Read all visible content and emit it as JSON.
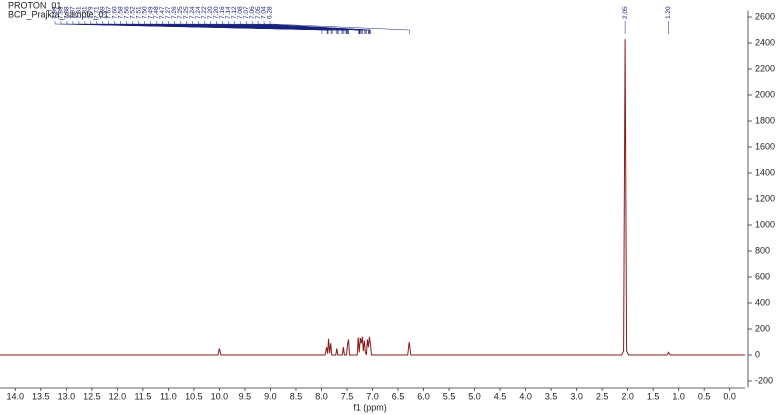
{
  "chart_data": {
    "type": "line",
    "title": "PROTON_01",
    "subtitle": "BCP_Prajkta_sample_01",
    "x_label": "f1 (ppm)",
    "peak_labels": [
      "7.99",
      "7.89",
      "7.88",
      "7.87",
      "7.81",
      "7.81",
      "7.79",
      "7.71",
      "7.69",
      "7.67",
      "7.60",
      "7.58",
      "7.56",
      "7.52",
      "7.51",
      "7.50",
      "7.49",
      "7.48",
      "7.47",
      "7.27",
      "7.26",
      "7.25",
      "7.25",
      "7.24",
      "7.24",
      "7.22",
      "7.20",
      "7.20",
      "7.16",
      "7.14",
      "7.12",
      "7.08",
      "7.07",
      "7.06",
      "7.05",
      "7.04",
      "6.28"
    ],
    "isolated_peak_labels": [
      "2.05",
      "1.20"
    ],
    "x": [
      14.3,
      10.03,
      10.0,
      9.97,
      7.93,
      7.9,
      7.88,
      7.86,
      7.84,
      7.82,
      7.8,
      7.72,
      7.7,
      7.68,
      7.59,
      7.57,
      7.55,
      7.51,
      7.49,
      7.47,
      7.45,
      7.3,
      7.28,
      7.26,
      7.24,
      7.22,
      7.2,
      7.18,
      7.16,
      7.14,
      7.12,
      7.1,
      7.08,
      7.06,
      7.04,
      7.02,
      6.31,
      6.28,
      6.25,
      2.12,
      2.08,
      2.05,
      2.02,
      1.98,
      1.23,
      1.2,
      1.17,
      -0.3
    ],
    "series": [
      {
        "name": "spectrum",
        "color": "#8b1a1a",
        "values": [
          0,
          0,
          50,
          0,
          0,
          60,
          10,
          125,
          15,
          90,
          0,
          0,
          50,
          0,
          0,
          60,
          0,
          0,
          80,
          120,
          0,
          0,
          135,
          20,
          130,
          90,
          140,
          30,
          110,
          20,
          0,
          120,
          60,
          140,
          80,
          0,
          0,
          100,
          0,
          0,
          30,
          2430,
          30,
          0,
          0,
          20,
          0,
          0
        ]
      }
    ],
    "xlim": [
      14.3,
      -0.3
    ],
    "xticks": [
      {
        "value": 14,
        "label": "14.0"
      },
      13.5,
      {
        "value": 13,
        "label": "13.0"
      },
      12.5,
      {
        "value": 12,
        "label": "12.0"
      },
      11.5,
      {
        "value": 11,
        "label": "11.0"
      },
      10.5,
      {
        "value": 10,
        "label": "10.0"
      },
      9.5,
      {
        "value": 9,
        "label": "9.0"
      },
      8.5,
      {
        "value": 8,
        "label": "8.0"
      },
      7.5,
      {
        "value": 7,
        "label": "7.0"
      },
      6.5,
      {
        "value": 6,
        "label": "6.0"
      },
      5.5,
      {
        "value": 5,
        "label": "5.0"
      },
      4.5,
      {
        "value": 4,
        "label": "4.0"
      },
      3.5,
      {
        "value": 3,
        "label": "3.0"
      },
      2.5,
      {
        "value": 2,
        "label": "2.0"
      },
      1.5,
      {
        "value": 1,
        "label": "1.0"
      },
      0.5,
      {
        "value": 0,
        "label": "0.0"
      }
    ],
    "ylim": [
      -250,
      2650
    ],
    "yticks": [
      -200,
      0,
      200,
      400,
      600,
      800,
      1000,
      1200,
      1400,
      1600,
      1800,
      2000,
      2200,
      2400,
      2600
    ]
  }
}
